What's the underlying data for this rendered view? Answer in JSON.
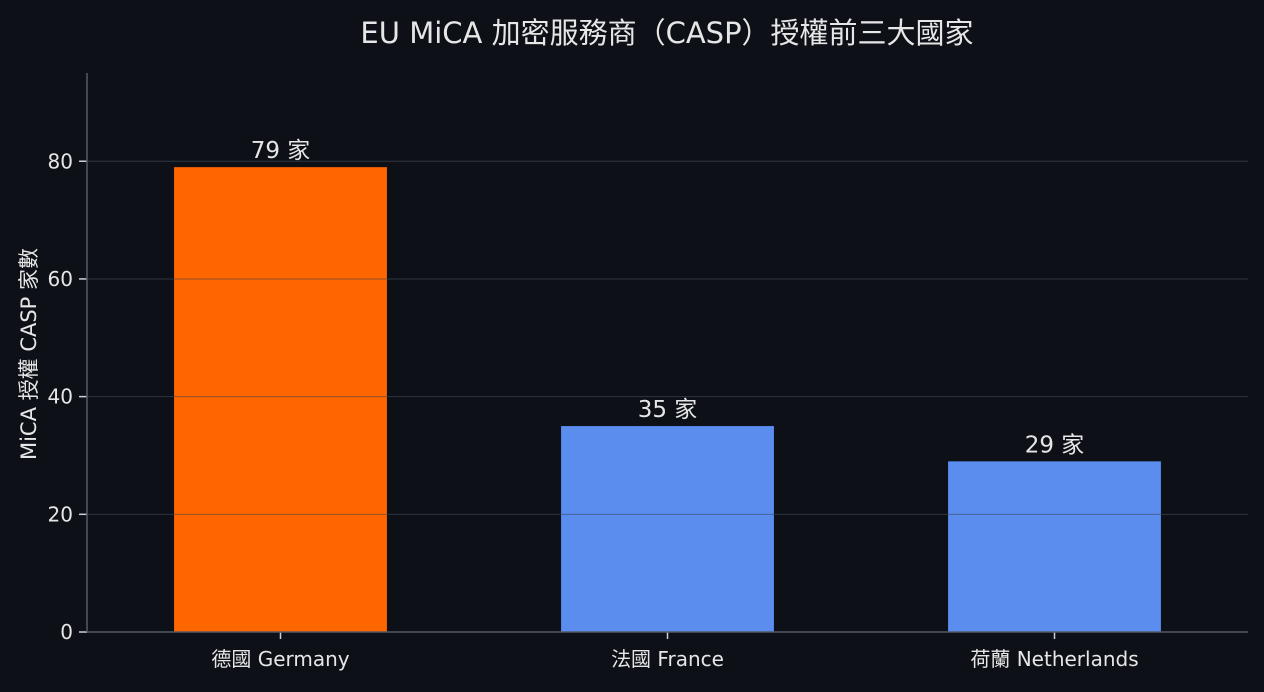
{
  "chart_data": {
    "type": "bar",
    "title": "EU MiCA 加密服務商（CASP）授權前三大國家",
    "ylabel": "MiCA 授權 CASP 家數",
    "xlabel": "",
    "categories": [
      "德國 Germany",
      "法國 France",
      "荷蘭 Netherlands"
    ],
    "values": [
      79,
      35,
      29
    ],
    "value_labels": [
      "79 家",
      "35 家",
      "29 家"
    ],
    "bar_colors": [
      "#ff6600",
      "#5b8def",
      "#5b8def"
    ],
    "ylim": [
      0,
      95
    ],
    "yticks": [
      0,
      20,
      40,
      60,
      80
    ],
    "grid": true,
    "background": "#0d1017",
    "text_color": "#e6e6e6"
  }
}
